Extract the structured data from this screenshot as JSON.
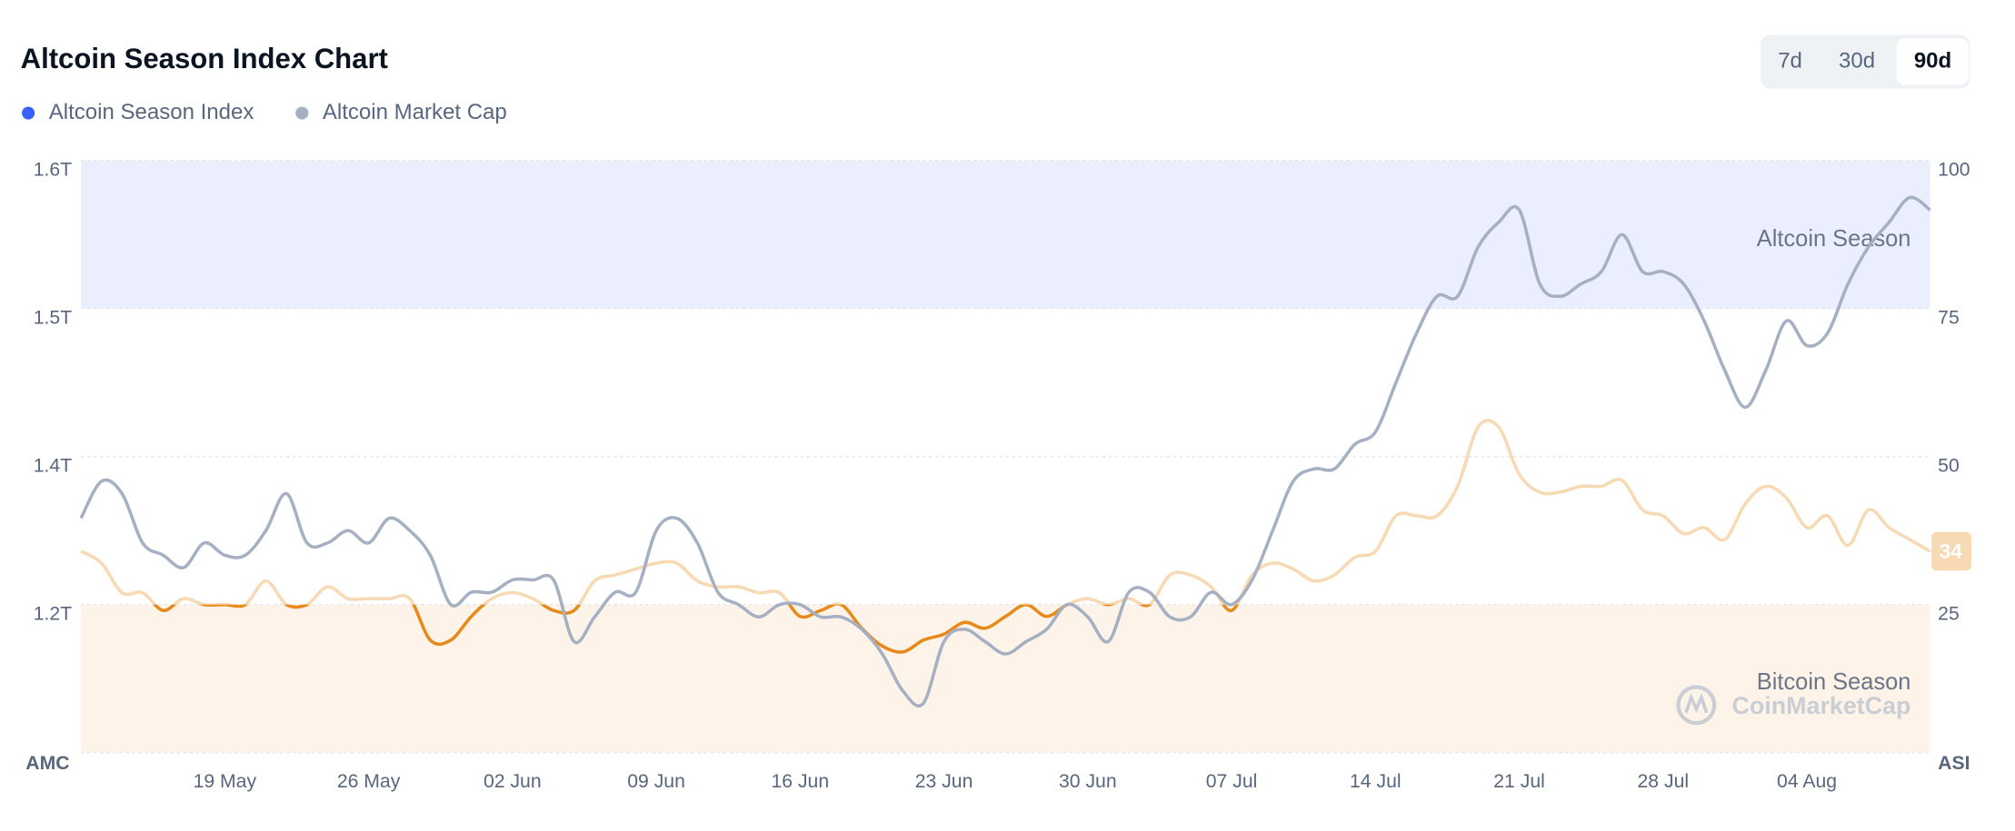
{
  "chart_data": {
    "type": "line",
    "title": "Altcoin Season Index Chart",
    "range_buttons": [
      "7d",
      "30d",
      "90d"
    ],
    "selected_range": "90d",
    "y_label": "AMC",
    "y2_label": "ASI",
    "watermark": "CoinMarketCap",
    "categories": [
      null,
      null,
      null,
      null,
      null,
      null,
      null,
      "19 May",
      null,
      null,
      null,
      null,
      null,
      null,
      "26 May",
      null,
      null,
      null,
      null,
      null,
      null,
      "02 Jun",
      null,
      null,
      null,
      null,
      null,
      null,
      "09 Jun",
      null,
      null,
      null,
      null,
      null,
      null,
      "16 Jun",
      null,
      null,
      null,
      null,
      null,
      null,
      "23 Jun",
      null,
      null,
      null,
      null,
      null,
      null,
      "30 Jun",
      null,
      null,
      null,
      null,
      null,
      null,
      "07 Jul",
      null,
      null,
      null,
      null,
      null,
      null,
      "14 Jul",
      null,
      null,
      null,
      null,
      null,
      null,
      "21 Jul",
      null,
      null,
      null,
      null,
      null,
      null,
      "28 Jul",
      null,
      null,
      null,
      null,
      null,
      null,
      "04 Aug",
      null,
      null,
      null,
      null,
      null,
      null
    ],
    "ylim": [
      1.12,
      1.6
    ],
    "yticks": [
      {
        "value": 1.24,
        "label": "1.2T"
      },
      {
        "value": 1.36,
        "label": "1.4T"
      },
      {
        "value": 1.48,
        "label": "1.5T"
      },
      {
        "value": 1.6,
        "label": "1.6T"
      }
    ],
    "y2lim": [
      0,
      100
    ],
    "y2ticks": [
      25,
      50,
      75,
      100
    ],
    "grid": true,
    "bands": [
      {
        "label": "Altcoin Season",
        "from": 75,
        "to": 100,
        "color": "#ebeefd"
      },
      {
        "label": "Bitcoin Season",
        "from": 0,
        "to": 25,
        "color": "#fdf3e8"
      }
    ],
    "line_colors": {
      "threshold": 25,
      "below": "#e8891b",
      "above": "#f7dab3"
    },
    "series": [
      {
        "name": "Altcoin Season Index",
        "color": "#3861fb",
        "axis": "y2",
        "values": [
          34,
          32,
          27,
          27,
          24,
          26,
          25,
          25,
          25,
          29,
          25,
          25,
          28,
          26,
          26,
          26,
          26,
          19,
          19,
          23,
          26,
          27,
          26,
          24,
          24,
          29,
          30,
          31,
          32,
          32,
          29,
          28,
          28,
          27,
          27,
          23,
          24,
          25,
          21,
          18,
          17,
          19,
          20,
          22,
          21,
          23,
          25,
          23,
          25,
          26,
          25,
          26,
          25,
          30,
          30,
          28,
          24,
          30,
          32,
          31,
          29,
          30,
          33,
          34,
          40,
          40,
          40,
          45,
          55,
          55,
          47,
          44,
          44,
          45,
          45,
          46,
          41,
          40,
          37,
          38,
          36,
          42,
          45,
          43,
          38,
          40,
          35,
          41,
          38,
          36,
          34
        ]
      },
      {
        "name": "Altcoin Market Cap",
        "color": "#a6b0c3",
        "values": [
          1.31,
          1.34,
          1.33,
          1.29,
          1.28,
          1.27,
          1.29,
          1.28,
          1.28,
          1.3,
          1.33,
          1.29,
          1.29,
          1.3,
          1.29,
          1.31,
          1.3,
          1.28,
          1.24,
          1.25,
          1.25,
          1.26,
          1.26,
          1.26,
          1.21,
          1.23,
          1.25,
          1.25,
          1.3,
          1.31,
          1.29,
          1.25,
          1.24,
          1.23,
          1.24,
          1.24,
          1.23,
          1.23,
          1.22,
          1.2,
          1.17,
          1.16,
          1.21,
          1.22,
          1.21,
          1.2,
          1.21,
          1.22,
          1.24,
          1.23,
          1.21,
          1.25,
          1.25,
          1.23,
          1.23,
          1.25,
          1.24,
          1.26,
          1.3,
          1.34,
          1.35,
          1.35,
          1.37,
          1.38,
          1.42,
          1.46,
          1.49,
          1.49,
          1.53,
          1.55,
          1.56,
          1.5,
          1.49,
          1.5,
          1.51,
          1.54,
          1.51,
          1.51,
          1.5,
          1.47,
          1.43,
          1.4,
          1.43,
          1.47,
          1.45,
          1.46,
          1.5,
          1.53,
          1.55,
          1.57,
          1.56
        ]
      }
    ]
  }
}
